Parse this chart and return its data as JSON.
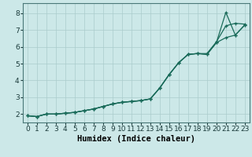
{
  "title": "",
  "xlabel": "Humidex (Indice chaleur)",
  "ylabel": "",
  "bg_color": "#cce8e8",
  "grid_color": "#aacccc",
  "line_color": "#1a6b5a",
  "xlim": [
    -0.5,
    23.5
  ],
  "ylim": [
    1.5,
    8.6
  ],
  "xticks": [
    0,
    1,
    2,
    3,
    4,
    5,
    6,
    7,
    8,
    9,
    10,
    11,
    12,
    13,
    14,
    15,
    16,
    17,
    18,
    19,
    20,
    21,
    22,
    23
  ],
  "yticks": [
    2,
    3,
    4,
    5,
    6,
    7,
    8
  ],
  "x": [
    0,
    1,
    2,
    3,
    4,
    5,
    6,
    7,
    8,
    9,
    10,
    11,
    12,
    13,
    14,
    15,
    16,
    17,
    18,
    19,
    20,
    21,
    22,
    23
  ],
  "line1": [
    1.9,
    1.85,
    2.0,
    2.0,
    2.05,
    2.1,
    2.2,
    2.3,
    2.45,
    2.6,
    2.7,
    2.75,
    2.8,
    2.9,
    3.55,
    4.35,
    5.05,
    5.55,
    5.6,
    5.6,
    6.3,
    7.25,
    7.4,
    7.35
  ],
  "line2": [
    1.9,
    1.85,
    2.0,
    2.0,
    2.05,
    2.1,
    2.2,
    2.3,
    2.45,
    2.6,
    2.7,
    2.75,
    2.8,
    2.9,
    3.55,
    4.35,
    5.05,
    5.55,
    5.6,
    5.55,
    6.25,
    6.55,
    6.7,
    7.3
  ],
  "line3": [
    1.9,
    1.85,
    2.0,
    2.0,
    2.05,
    2.1,
    2.2,
    2.3,
    2.45,
    2.6,
    2.7,
    2.75,
    2.8,
    2.9,
    3.55,
    4.35,
    5.05,
    5.55,
    5.6,
    5.55,
    6.25,
    8.05,
    6.7,
    7.3
  ],
  "xlabel_fontsize": 7.5,
  "tick_fontsize": 6.5
}
